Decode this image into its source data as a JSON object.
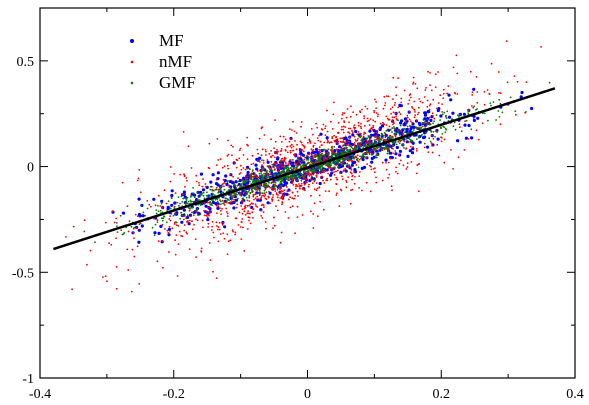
{
  "chart_data": {
    "type": "scatter",
    "title": "",
    "xlabel": "",
    "ylabel": "",
    "xlim": [
      -0.4,
      0.4
    ],
    "ylim": [
      -1,
      0.75
    ],
    "grid": false,
    "legend_position": "top-left",
    "x_ticks": [
      -0.4,
      -0.2,
      0,
      0.2,
      0.4
    ],
    "x_tick_labels": [
      "-0.4",
      "-0.2",
      "0",
      "0.2",
      "0.4"
    ],
    "y_ticks": [
      -1,
      -0.5,
      0,
      0.5
    ],
    "y_tick_labels": [
      "-1",
      "-0.5",
      "0",
      "0.5"
    ],
    "series": [
      {
        "name": "MF",
        "color": "#0000ff",
        "marker": "dot",
        "slope": 1.02,
        "intercept": 0.0,
        "x_range": [
          -0.37,
          0.37
        ],
        "spread": 0.05,
        "count": 700
      },
      {
        "name": "nMF",
        "color": "#ff0000",
        "marker": "small-dot",
        "slope": 1.25,
        "intercept": 0.0,
        "x_range": [
          -0.38,
          0.37
        ],
        "spread": 0.11,
        "count": 1500
      },
      {
        "name": "GMF",
        "color": "#008000",
        "marker": "small-dot",
        "slope": 1.02,
        "intercept": 0.0,
        "x_range": [
          -0.35,
          0.37
        ],
        "spread": 0.03,
        "count": 1000
      }
    ],
    "fit_line": {
      "color": "#000000",
      "x": [
        -0.38,
        0.37
      ],
      "y": [
        -0.39,
        0.37
      ]
    }
  }
}
